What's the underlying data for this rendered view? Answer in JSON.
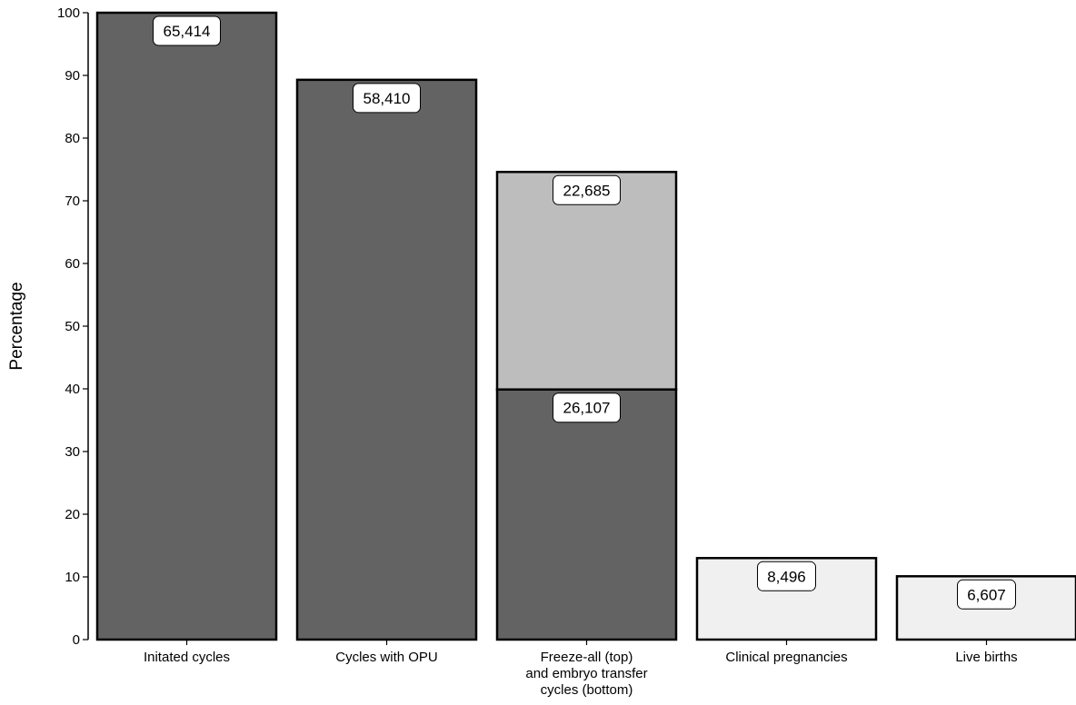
{
  "chart_data": {
    "type": "bar",
    "stacked": true,
    "title": "",
    "xlabel": "",
    "ylabel": "Percentage",
    "ylim": [
      0,
      100
    ],
    "yticks": [
      0,
      10,
      20,
      30,
      40,
      50,
      60,
      70,
      80,
      90,
      100
    ],
    "grid": false,
    "legend": "none",
    "categories": [
      "Initated cycles",
      "Cycles with OPU",
      "Freeze-all (top) and embryo transfer cycles (bottom)",
      "Clinical pregnancies",
      "Live births"
    ],
    "category_lines": [
      [
        "Initated cycles"
      ],
      [
        "Cycles with OPU"
      ],
      [
        "Freeze-all (top)",
        "and embryo transfer",
        "cycles (bottom)"
      ],
      [
        "Clinical pregnancies"
      ],
      [
        "Live births"
      ]
    ],
    "bars": [
      {
        "segments": [
          {
            "value": 100,
            "label": "65,414",
            "color": "#636363"
          }
        ]
      },
      {
        "segments": [
          {
            "value": 89.3,
            "label": "58,410",
            "color": "#636363"
          }
        ]
      },
      {
        "segments": [
          {
            "value": 39.9,
            "label": "26,107",
            "color": "#636363"
          },
          {
            "value": 34.7,
            "label": "22,685",
            "color": "#bdbdbd"
          }
        ]
      },
      {
        "segments": [
          {
            "value": 13.0,
            "label": "8,496",
            "color": "#f0f0f0"
          }
        ]
      },
      {
        "segments": [
          {
            "value": 10.1,
            "label": "6,607",
            "color": "#f0f0f0"
          }
        ]
      }
    ]
  }
}
